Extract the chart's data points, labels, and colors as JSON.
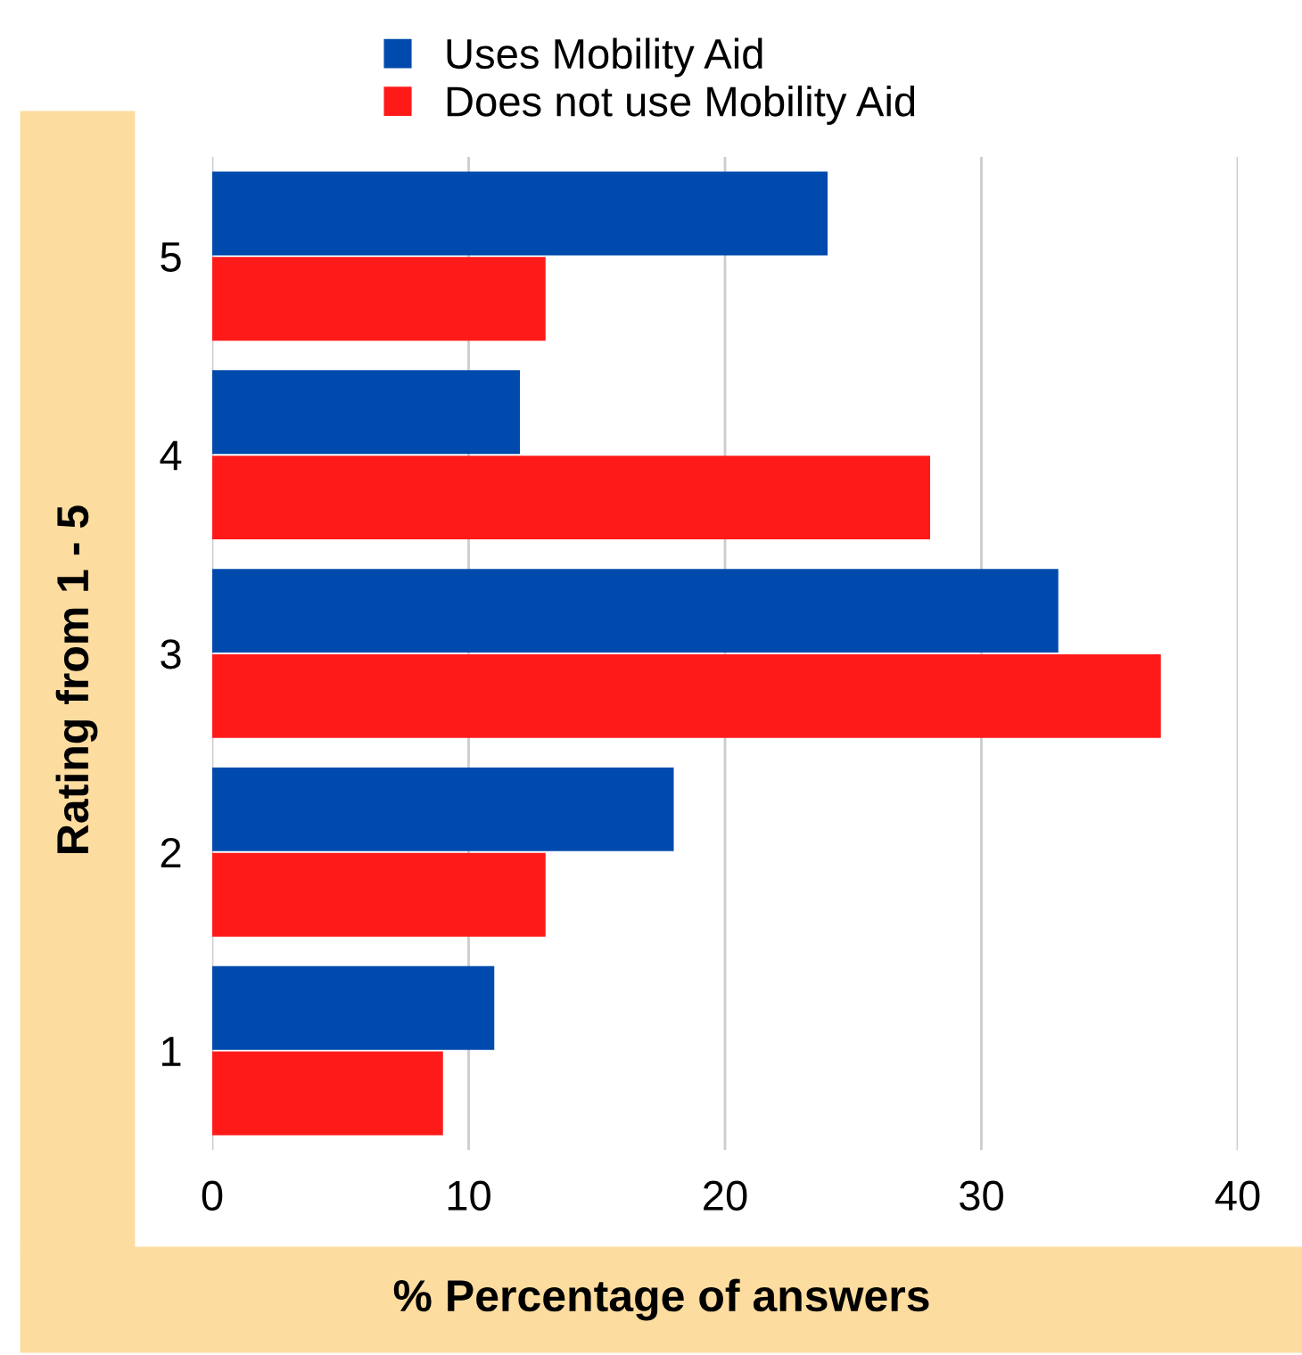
{
  "chart_data": {
    "type": "bar",
    "orientation": "horizontal",
    "categories": [
      "5",
      "4",
      "3",
      "2",
      "1"
    ],
    "series": [
      {
        "name": "Uses Mobility Aid",
        "color": "#004aad",
        "values": [
          24,
          12,
          33,
          18,
          11
        ]
      },
      {
        "name": "Does not use Mobility Aid",
        "color": "#ff1a1a",
        "values": [
          13,
          28,
          37,
          13,
          9
        ]
      }
    ],
    "xlabel": "% Percentage of answers",
    "ylabel": "Rating from 1 - 5",
    "xlim": [
      0,
      40
    ],
    "xticks": [
      0,
      10,
      20,
      30,
      40
    ],
    "grid": "x",
    "legend": "top"
  }
}
